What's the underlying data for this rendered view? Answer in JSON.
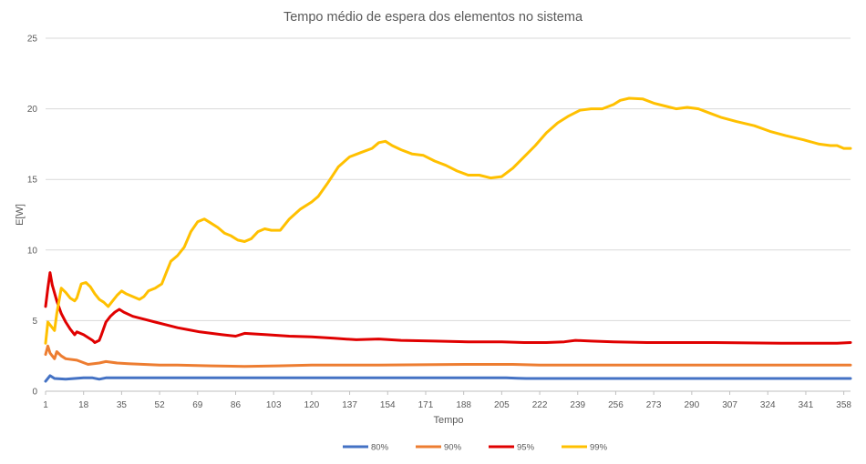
{
  "chart_data": {
    "type": "line",
    "title": "Tempo médio de espera dos elementos no sistema",
    "xlabel": "Tempo",
    "ylabel": "E[W]",
    "xlim": [
      1,
      361
    ],
    "ylim": [
      0,
      25
    ],
    "y_ticks": [
      0,
      5,
      10,
      15,
      20,
      25
    ],
    "x_ticks": [
      1,
      18,
      35,
      52,
      69,
      86,
      103,
      120,
      137,
      154,
      171,
      188,
      205,
      222,
      239,
      256,
      273,
      290,
      307,
      324,
      341,
      358
    ],
    "grid": true,
    "legend_position": "bottom",
    "series": [
      {
        "name": "80%",
        "color": "#4472C4",
        "points": [
          [
            1,
            0.7
          ],
          [
            3,
            1.1
          ],
          [
            5,
            0.9
          ],
          [
            10,
            0.85
          ],
          [
            14,
            0.9
          ],
          [
            18,
            0.95
          ],
          [
            22,
            0.95
          ],
          [
            25,
            0.85
          ],
          [
            28,
            0.95
          ],
          [
            35,
            0.95
          ],
          [
            60,
            0.95
          ],
          [
            100,
            0.95
          ],
          [
            140,
            0.95
          ],
          [
            185,
            0.95
          ],
          [
            195,
            0.95
          ],
          [
            207,
            0.95
          ],
          [
            212,
            0.92
          ],
          [
            216,
            0.9
          ],
          [
            250,
            0.9
          ],
          [
            300,
            0.9
          ],
          [
            361,
            0.9
          ]
        ]
      },
      {
        "name": "90%",
        "color": "#ED7D31",
        "points": [
          [
            1,
            2.6
          ],
          [
            2,
            3.2
          ],
          [
            3,
            2.7
          ],
          [
            5,
            2.3
          ],
          [
            6,
            2.8
          ],
          [
            8,
            2.5
          ],
          [
            10,
            2.3
          ],
          [
            15,
            2.2
          ],
          [
            20,
            1.9
          ],
          [
            25,
            2.0
          ],
          [
            28,
            2.1
          ],
          [
            33,
            2.0
          ],
          [
            38,
            1.95
          ],
          [
            45,
            1.9
          ],
          [
            52,
            1.85
          ],
          [
            60,
            1.85
          ],
          [
            75,
            1.8
          ],
          [
            90,
            1.75
          ],
          [
            105,
            1.8
          ],
          [
            120,
            1.85
          ],
          [
            150,
            1.85
          ],
          [
            190,
            1.9
          ],
          [
            210,
            1.9
          ],
          [
            222,
            1.85
          ],
          [
            260,
            1.85
          ],
          [
            300,
            1.85
          ],
          [
            361,
            1.85
          ]
        ]
      },
      {
        "name": "95%",
        "color": "#E00000",
        "points": [
          [
            1,
            6.0
          ],
          [
            2,
            7.3
          ],
          [
            3,
            8.4
          ],
          [
            4,
            7.5
          ],
          [
            6,
            6.4
          ],
          [
            8,
            5.5
          ],
          [
            10,
            4.9
          ],
          [
            12,
            4.4
          ],
          [
            14,
            4.0
          ],
          [
            15,
            4.2
          ],
          [
            18,
            4.0
          ],
          [
            20,
            3.8
          ],
          [
            22,
            3.6
          ],
          [
            23,
            3.45
          ],
          [
            25,
            3.6
          ],
          [
            26,
            4.0
          ],
          [
            28,
            4.9
          ],
          [
            30,
            5.3
          ],
          [
            32,
            5.6
          ],
          [
            34,
            5.8
          ],
          [
            36,
            5.6
          ],
          [
            40,
            5.3
          ],
          [
            45,
            5.1
          ],
          [
            50,
            4.9
          ],
          [
            55,
            4.7
          ],
          [
            60,
            4.5
          ],
          [
            65,
            4.35
          ],
          [
            70,
            4.2
          ],
          [
            80,
            4.0
          ],
          [
            86,
            3.9
          ],
          [
            90,
            4.1
          ],
          [
            100,
            4.0
          ],
          [
            110,
            3.9
          ],
          [
            120,
            3.85
          ],
          [
            130,
            3.75
          ],
          [
            140,
            3.65
          ],
          [
            150,
            3.7
          ],
          [
            160,
            3.6
          ],
          [
            175,
            3.55
          ],
          [
            190,
            3.5
          ],
          [
            205,
            3.5
          ],
          [
            215,
            3.45
          ],
          [
            225,
            3.45
          ],
          [
            233,
            3.5
          ],
          [
            238,
            3.6
          ],
          [
            245,
            3.55
          ],
          [
            255,
            3.5
          ],
          [
            270,
            3.45
          ],
          [
            290,
            3.45
          ],
          [
            300,
            3.45
          ],
          [
            330,
            3.4
          ],
          [
            345,
            3.4
          ],
          [
            355,
            3.4
          ],
          [
            361,
            3.45
          ]
        ]
      },
      {
        "name": "99%",
        "color": "#FFC000",
        "points": [
          [
            1,
            3.4
          ],
          [
            2,
            4.9
          ],
          [
            3,
            4.7
          ],
          [
            5,
            4.3
          ],
          [
            6,
            5.5
          ],
          [
            8,
            7.3
          ],
          [
            10,
            7.0
          ],
          [
            12,
            6.6
          ],
          [
            14,
            6.4
          ],
          [
            15,
            6.6
          ],
          [
            17,
            7.6
          ],
          [
            19,
            7.7
          ],
          [
            21,
            7.4
          ],
          [
            23,
            6.9
          ],
          [
            25,
            6.5
          ],
          [
            27,
            6.3
          ],
          [
            29,
            6.0
          ],
          [
            31,
            6.4
          ],
          [
            33,
            6.8
          ],
          [
            35,
            7.1
          ],
          [
            37,
            6.9
          ],
          [
            40,
            6.7
          ],
          [
            43,
            6.5
          ],
          [
            45,
            6.7
          ],
          [
            47,
            7.1
          ],
          [
            50,
            7.3
          ],
          [
            53,
            7.6
          ],
          [
            55,
            8.4
          ],
          [
            57,
            9.2
          ],
          [
            60,
            9.6
          ],
          [
            63,
            10.2
          ],
          [
            66,
            11.3
          ],
          [
            69,
            12.0
          ],
          [
            72,
            12.2
          ],
          [
            75,
            11.9
          ],
          [
            78,
            11.6
          ],
          [
            81,
            11.2
          ],
          [
            84,
            11.0
          ],
          [
            87,
            10.7
          ],
          [
            90,
            10.6
          ],
          [
            93,
            10.8
          ],
          [
            96,
            11.3
          ],
          [
            99,
            11.5
          ],
          [
            102,
            11.4
          ],
          [
            106,
            11.4
          ],
          [
            110,
            12.2
          ],
          [
            115,
            12.9
          ],
          [
            120,
            13.4
          ],
          [
            123,
            13.8
          ],
          [
            127,
            14.7
          ],
          [
            132,
            15.9
          ],
          [
            137,
            16.6
          ],
          [
            142,
            16.9
          ],
          [
            147,
            17.2
          ],
          [
            150,
            17.6
          ],
          [
            153,
            17.7
          ],
          [
            156,
            17.4
          ],
          [
            160,
            17.1
          ],
          [
            165,
            16.8
          ],
          [
            170,
            16.7
          ],
          [
            175,
            16.3
          ],
          [
            180,
            16.0
          ],
          [
            185,
            15.6
          ],
          [
            190,
            15.3
          ],
          [
            195,
            15.3
          ],
          [
            200,
            15.1
          ],
          [
            205,
            15.2
          ],
          [
            210,
            15.8
          ],
          [
            215,
            16.6
          ],
          [
            220,
            17.4
          ],
          [
            225,
            18.3
          ],
          [
            230,
            19.0
          ],
          [
            235,
            19.5
          ],
          [
            240,
            19.9
          ],
          [
            245,
            20.0
          ],
          [
            250,
            20.0
          ],
          [
            255,
            20.3
          ],
          [
            258,
            20.6
          ],
          [
            262,
            20.75
          ],
          [
            268,
            20.7
          ],
          [
            273,
            20.4
          ],
          [
            278,
            20.2
          ],
          [
            283,
            20.0
          ],
          [
            288,
            20.1
          ],
          [
            293,
            20.0
          ],
          [
            298,
            19.7
          ],
          [
            303,
            19.4
          ],
          [
            310,
            19.1
          ],
          [
            318,
            18.8
          ],
          [
            325,
            18.4
          ],
          [
            332,
            18.1
          ],
          [
            340,
            17.8
          ],
          [
            347,
            17.5
          ],
          [
            352,
            17.4
          ],
          [
            355,
            17.4
          ],
          [
            358,
            17.2
          ],
          [
            361,
            17.2
          ]
        ]
      }
    ]
  }
}
